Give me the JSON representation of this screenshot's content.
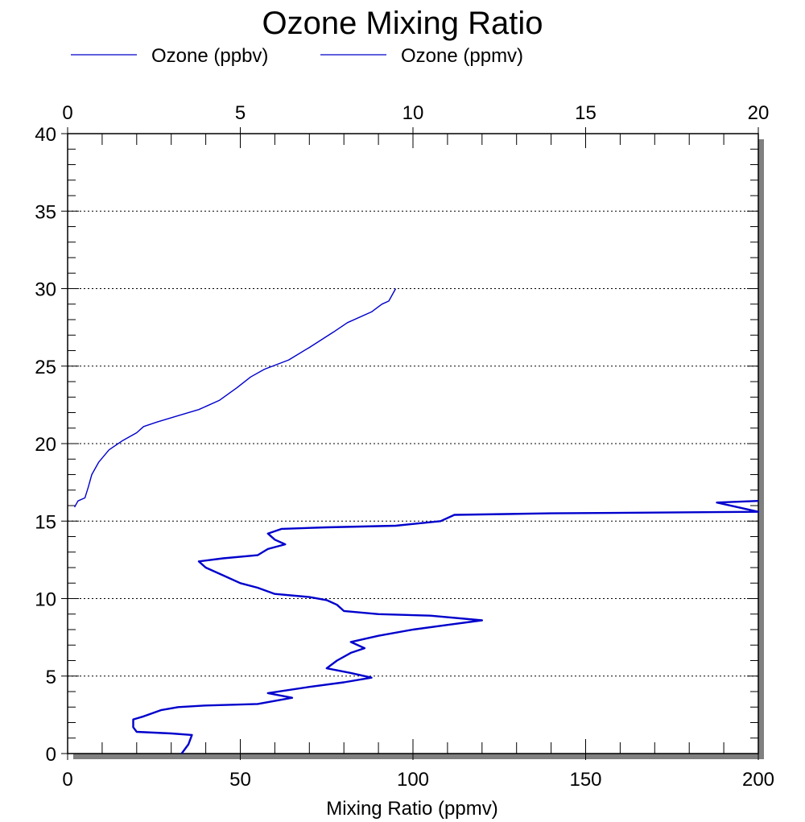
{
  "chart_data": {
    "type": "line",
    "title": "Ozone Mixing Ratio",
    "xlabel": "Mixing Ratio (ppmv)",
    "ylabel": "",
    "legend_position": "top",
    "grid": "horizontal dotted",
    "xlim_bottom": [
      0,
      200
    ],
    "xlim_top": [
      0,
      20
    ],
    "ylim": [
      0,
      40
    ],
    "xticks_bottom": [
      "0",
      "50",
      "100",
      "150",
      "200"
    ],
    "xticks_top": [
      "0",
      "5",
      "10",
      "15",
      "20"
    ],
    "yticks": [
      "0",
      "5",
      "10",
      "15",
      "20",
      "25",
      "30",
      "35",
      "40"
    ],
    "line_color": "#0000cc",
    "series": [
      {
        "name": "Ozone (ppbv)",
        "axis": "bottom",
        "points": [
          [
            33,
            0.0
          ],
          [
            35,
            0.6
          ],
          [
            36,
            1.2
          ],
          [
            30,
            1.3
          ],
          [
            20,
            1.4
          ],
          [
            19,
            1.7
          ],
          [
            19,
            2.2
          ],
          [
            22,
            2.4
          ],
          [
            27,
            2.8
          ],
          [
            32,
            3.0
          ],
          [
            40,
            3.1
          ],
          [
            55,
            3.2
          ],
          [
            65,
            3.6
          ],
          [
            58,
            3.9
          ],
          [
            70,
            4.3
          ],
          [
            80,
            4.6
          ],
          [
            88,
            4.9
          ],
          [
            82,
            5.2
          ],
          [
            75,
            5.5
          ],
          [
            78,
            6.0
          ],
          [
            82,
            6.5
          ],
          [
            86,
            6.8
          ],
          [
            82,
            7.2
          ],
          [
            90,
            7.6
          ],
          [
            100,
            8.0
          ],
          [
            110,
            8.3
          ],
          [
            120,
            8.6
          ],
          [
            105,
            8.9
          ],
          [
            90,
            9.0
          ],
          [
            80,
            9.2
          ],
          [
            78,
            9.6
          ],
          [
            75,
            9.9
          ],
          [
            70,
            10.1
          ],
          [
            60,
            10.3
          ],
          [
            55,
            10.7
          ],
          [
            50,
            11.0
          ],
          [
            45,
            11.5
          ],
          [
            40,
            12.0
          ],
          [
            38,
            12.4
          ],
          [
            45,
            12.6
          ],
          [
            55,
            12.8
          ],
          [
            58,
            13.2
          ],
          [
            63,
            13.5
          ],
          [
            60,
            13.8
          ],
          [
            58,
            14.2
          ],
          [
            62,
            14.5
          ],
          [
            75,
            14.6
          ],
          [
            95,
            14.7
          ],
          [
            108,
            15.0
          ],
          [
            112,
            15.4
          ],
          [
            140,
            15.5
          ],
          [
            200,
            15.6
          ],
          [
            188,
            16.2
          ],
          [
            200,
            16.3
          ]
        ]
      },
      {
        "name": "Ozone (ppmv)",
        "axis": "top",
        "points": [
          [
            0.2,
            15.9
          ],
          [
            0.3,
            16.3
          ],
          [
            0.5,
            16.5
          ],
          [
            0.6,
            17.2
          ],
          [
            0.7,
            18.0
          ],
          [
            0.9,
            18.8
          ],
          [
            1.2,
            19.6
          ],
          [
            1.6,
            20.2
          ],
          [
            2.0,
            20.7
          ],
          [
            2.2,
            21.1
          ],
          [
            2.6,
            21.4
          ],
          [
            3.2,
            21.8
          ],
          [
            3.8,
            22.2
          ],
          [
            4.4,
            22.8
          ],
          [
            4.9,
            23.6
          ],
          [
            5.3,
            24.3
          ],
          [
            5.7,
            24.8
          ],
          [
            6.4,
            25.4
          ],
          [
            7.0,
            26.2
          ],
          [
            7.7,
            27.2
          ],
          [
            8.1,
            27.8
          ],
          [
            8.8,
            28.5
          ],
          [
            9.1,
            29.0
          ],
          [
            9.3,
            29.2
          ],
          [
            9.5,
            30.0
          ]
        ]
      }
    ]
  }
}
